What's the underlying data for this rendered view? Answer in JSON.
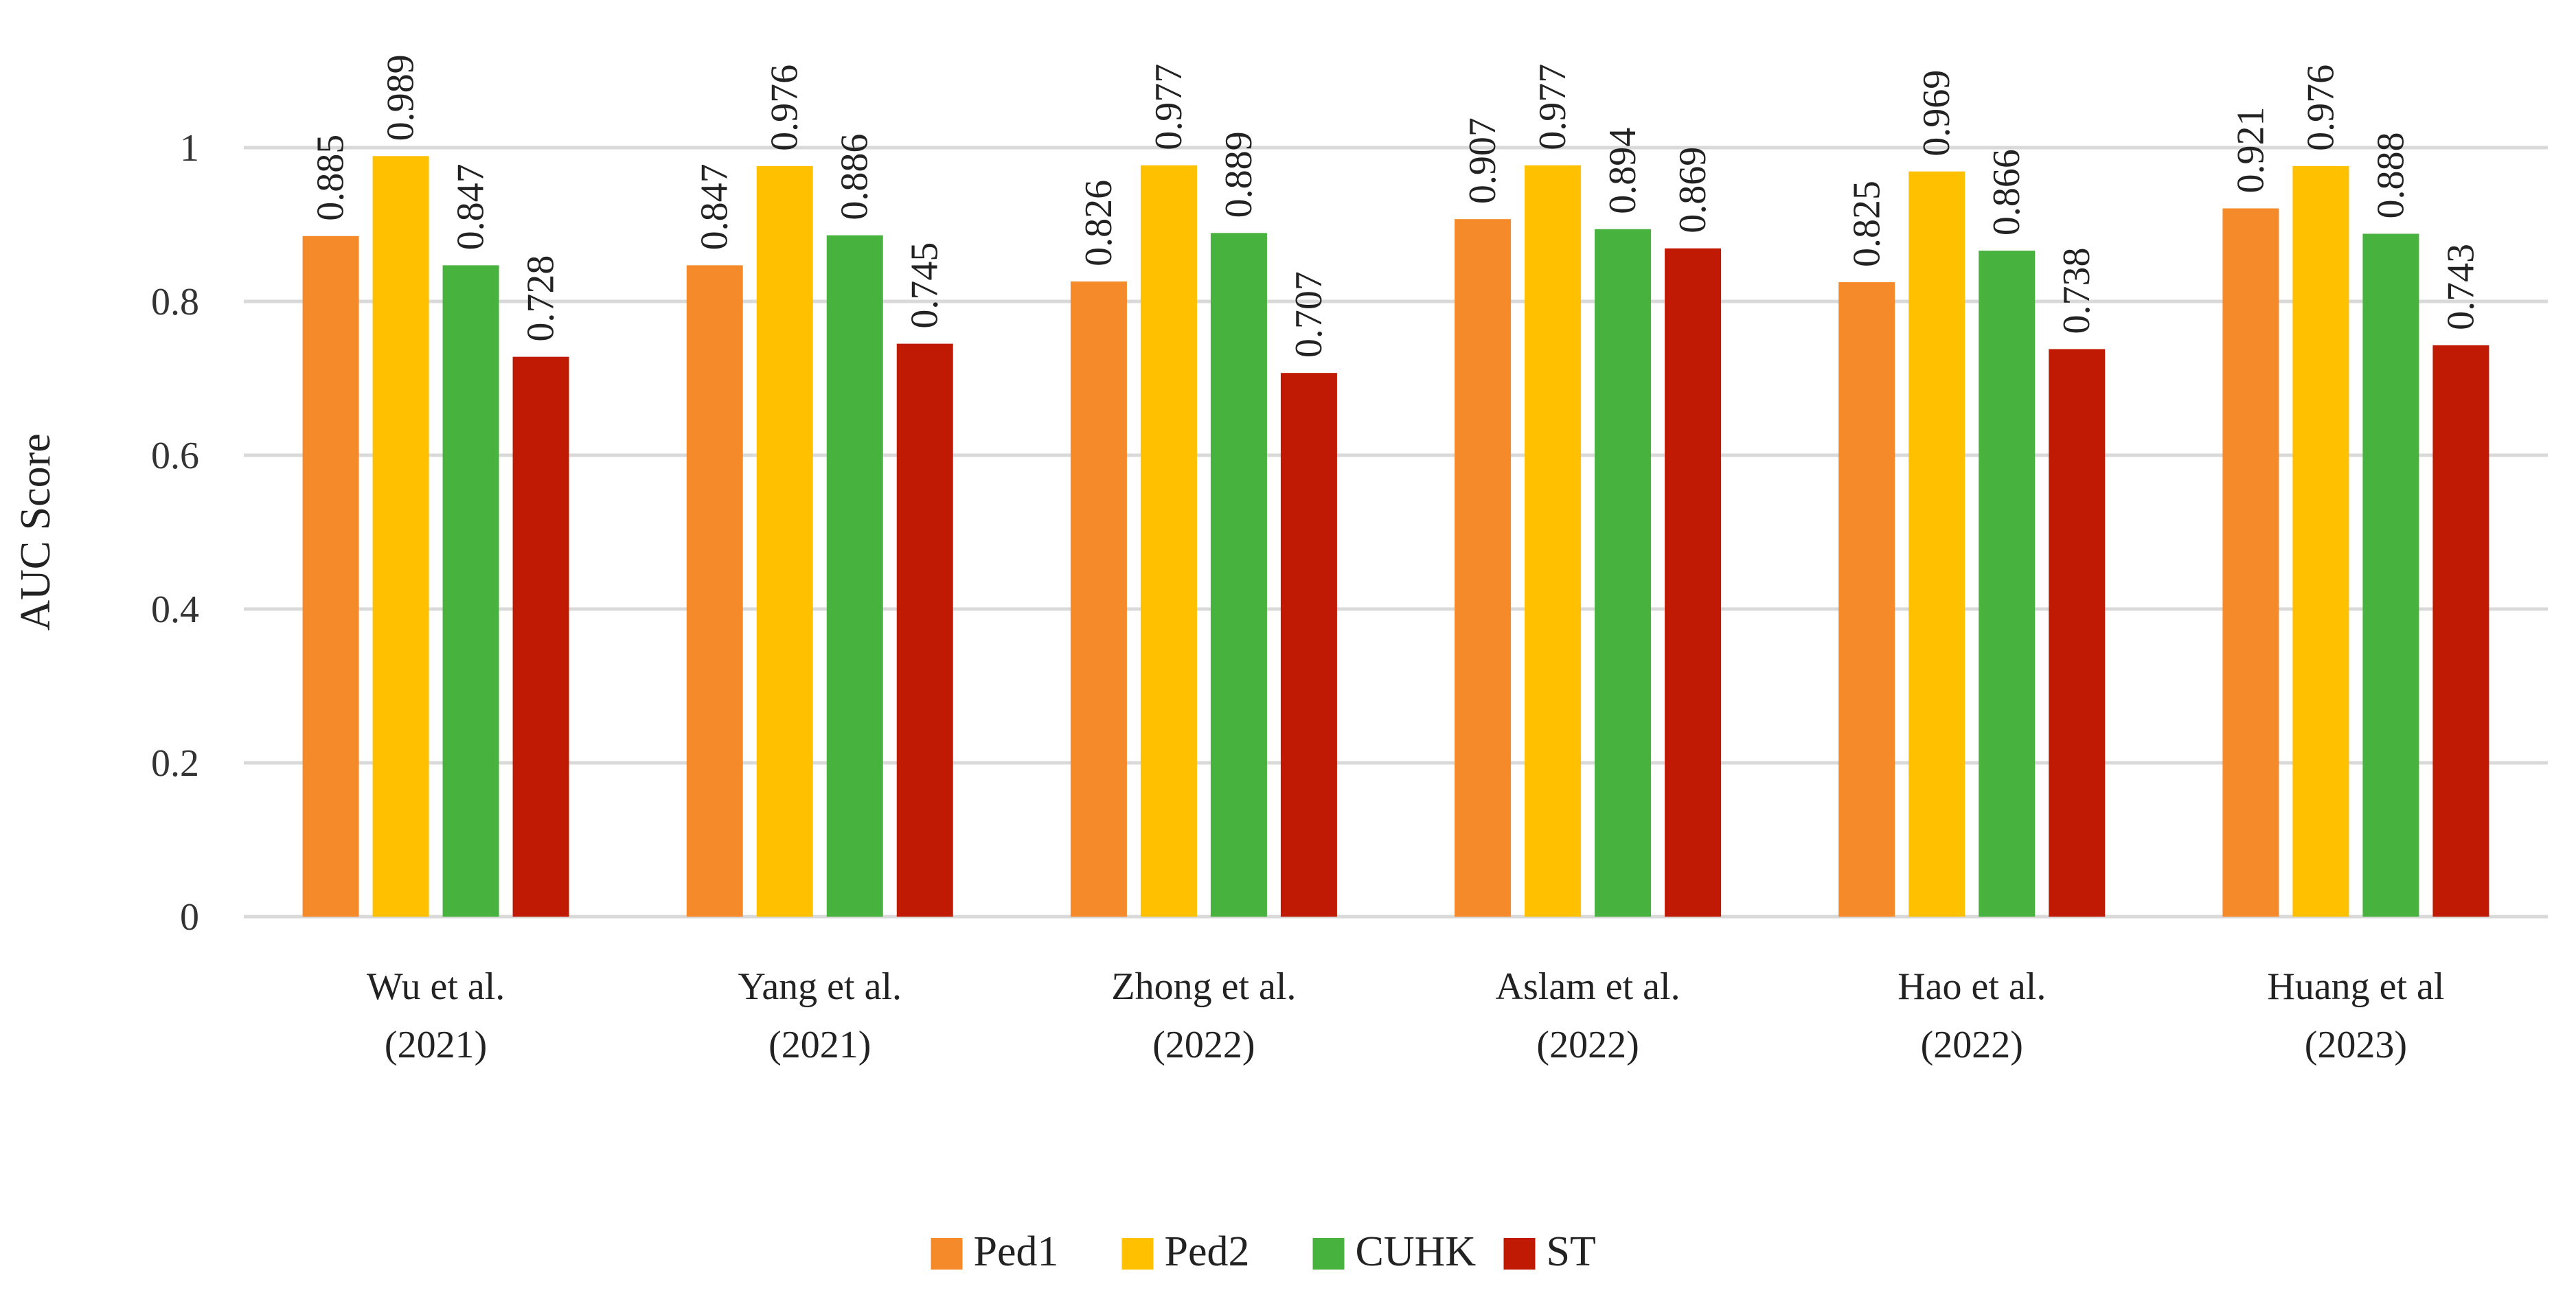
{
  "chart_data": {
    "type": "bar",
    "title": "",
    "xlabel": "",
    "ylabel": "AUC Score",
    "ylim": [
      0,
      1.0
    ],
    "yticks": [
      0,
      0.2,
      0.4,
      0.6,
      0.8,
      1
    ],
    "ytick_labels": [
      "0",
      "0.2",
      "0.4",
      "0.6",
      "0.8",
      "1"
    ],
    "grid": true,
    "legend_position": "bottom",
    "categories": [
      [
        "Wu et al.",
        "(2021)"
      ],
      [
        "Yang et al.",
        "(2021)"
      ],
      [
        "Zhong et al.",
        "(2022)"
      ],
      [
        "Aslam et al.",
        "(2022)"
      ],
      [
        "Hao et al.",
        "(2022)"
      ],
      [
        "Huang et al",
        "(2023)"
      ]
    ],
    "series": [
      {
        "name": "Ped1",
        "color": "#F58A2A",
        "values": [
          0.885,
          0.847,
          0.826,
          0.907,
          0.825,
          0.921
        ]
      },
      {
        "name": "Ped2",
        "color": "#FFC000",
        "values": [
          0.989,
          0.976,
          0.977,
          0.977,
          0.969,
          0.976
        ]
      },
      {
        "name": "CUHK",
        "color": "#47B23D",
        "values": [
          0.847,
          0.886,
          0.889,
          0.894,
          0.866,
          0.888
        ]
      },
      {
        "name": "ST",
        "color": "#C01A05",
        "values": [
          0.728,
          0.745,
          0.707,
          0.869,
          0.738,
          0.743
        ]
      }
    ],
    "data_labels": [
      [
        "0.885",
        "0.989",
        "0.847",
        "0.728"
      ],
      [
        "0.847",
        "0.976",
        "0.886",
        "0.745"
      ],
      [
        "0.826",
        "0.977",
        "0.889",
        "0.707"
      ],
      [
        "0.907",
        "0.977",
        "0.894",
        "0.869"
      ],
      [
        "0.825",
        "0.969",
        "0.866",
        "0.738"
      ],
      [
        "0.921",
        "0.976",
        "0.888",
        "0.743"
      ]
    ]
  }
}
